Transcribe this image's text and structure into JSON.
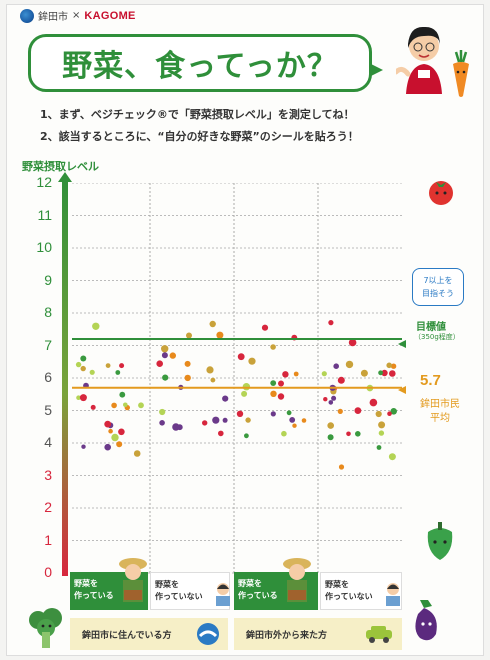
{
  "header": {
    "city": "鉾田市",
    "separator": "×",
    "company": "KAGOME",
    "title": "野菜、食ってっか？"
  },
  "instructions": [
    "1、まず、ベジチェック®で「野菜摂取レベル」を測定してね！",
    "2、該当するところに、“自分の好きな野菜”のシールを貼ろう！"
  ],
  "axis": {
    "title": "野菜摂取レベル",
    "ticks": [
      "12",
      "11",
      "10",
      "9",
      "8",
      "7",
      "6",
      "5",
      "4",
      "3",
      "2",
      "1",
      "0"
    ]
  },
  "goal_note": {
    "line1": "7以上を",
    "line2": "目指そう"
  },
  "target": {
    "label": "目標値",
    "sub": "（350g程度）",
    "value": 7.2
  },
  "average": {
    "value": "5.7",
    "line1": "鉾田市民",
    "line2": "平均"
  },
  "categories": [
    {
      "line1": "野菜を",
      "line2": "作っている"
    },
    {
      "line1": "野菜を",
      "line2": "作っていない"
    },
    {
      "line1": "野菜を",
      "line2": "作っている"
    },
    {
      "line1": "野菜を",
      "line2": "作っていない"
    }
  ],
  "groups": {
    "residents": "鉾田市に住んでいる方",
    "outside": "鉾田市外から来た方"
  },
  "colors": {
    "green": "#2f8f3a",
    "orange": "#e39a1e",
    "red": "#d7263d",
    "blue": "#2a7ac4"
  }
}
